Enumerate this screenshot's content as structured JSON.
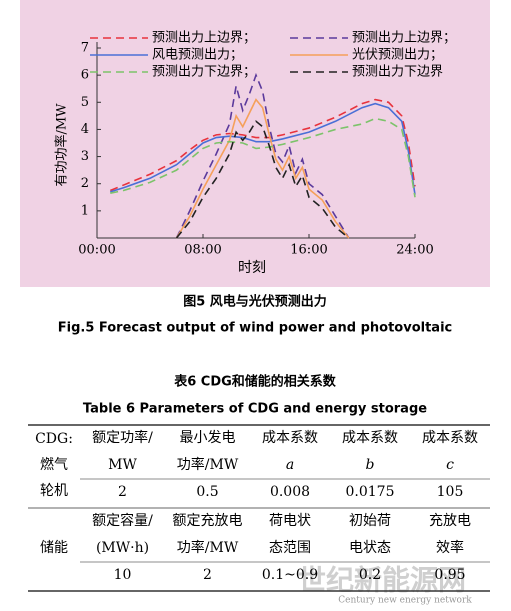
{
  "chart_data": {
    "type": "line",
    "ylabel": "有功功率/MW",
    "xlabel": "时刻",
    "xlim": [
      0,
      24
    ],
    "xticks": [
      {
        "value": 0,
        "label": "00:00"
      },
      {
        "value": 8,
        "label": "08:00"
      },
      {
        "value": 16,
        "label": "16:00"
      },
      {
        "value": 24,
        "label": "24:00"
      }
    ],
    "ylim": [
      0,
      7
    ],
    "yticks": [
      1,
      2,
      3,
      4,
      5,
      6,
      7
    ],
    "series": [
      {
        "name": "预测出力上边界；",
        "color": "#e8323c",
        "dash": true,
        "x": [
          1,
          2,
          4,
          6,
          7,
          8,
          9,
          10,
          11,
          12,
          13,
          14,
          16,
          18,
          20,
          21,
          22,
          23,
          23.5,
          24
        ],
        "values": [
          1.75,
          1.95,
          2.35,
          2.85,
          3.25,
          3.6,
          3.8,
          3.85,
          3.8,
          3.7,
          3.7,
          3.8,
          4.05,
          4.45,
          4.95,
          5.1,
          5.0,
          4.5,
          3.5,
          1.9
        ]
      },
      {
        "name": "预测出力上边界；",
        "color": "#5b3a9c",
        "dash": true,
        "x": [
          6,
          7,
          8,
          9,
          10,
          10.5,
          11,
          11.5,
          12,
          12.5,
          13,
          13.5,
          14,
          14.5,
          15,
          15.5,
          16,
          17,
          18,
          19
        ],
        "values": [
          0,
          1,
          2.1,
          3.1,
          4.2,
          5.6,
          4.7,
          5.3,
          6.0,
          5.4,
          4.1,
          3.1,
          2.8,
          3.4,
          2.4,
          2.9,
          2.0,
          1.6,
          0.8,
          0
        ]
      },
      {
        "name": "风电预测出力；",
        "color": "#4a6fd6",
        "dash": false,
        "x": [
          1,
          2,
          4,
          6,
          7,
          8,
          9,
          10,
          11,
          12,
          13,
          14,
          16,
          18,
          20,
          21,
          22,
          23,
          23.5,
          24
        ],
        "values": [
          1.7,
          1.85,
          2.2,
          2.7,
          3.1,
          3.5,
          3.7,
          3.75,
          3.7,
          3.55,
          3.55,
          3.65,
          3.9,
          4.3,
          4.8,
          4.95,
          4.8,
          4.3,
          3.2,
          1.6
        ]
      },
      {
        "name": "光伏预测出力；",
        "color": "#f5a05a",
        "dash": false,
        "x": [
          6,
          7,
          8,
          9,
          10,
          10.5,
          11,
          11.5,
          12,
          12.5,
          13,
          13.5,
          14,
          14.5,
          15,
          15.5,
          16,
          17,
          18,
          19
        ],
        "values": [
          0,
          0.8,
          1.8,
          2.7,
          3.6,
          4.5,
          4.1,
          4.6,
          5.1,
          4.8,
          3.8,
          2.9,
          2.5,
          3.0,
          2.2,
          2.6,
          1.8,
          1.4,
          0.6,
          0
        ]
      },
      {
        "name": "预测出力下边界；",
        "color": "#7cc36a",
        "dash": true,
        "x": [
          1,
          2,
          4,
          6,
          7,
          8,
          9,
          10,
          11,
          12,
          13,
          14,
          16,
          18,
          20,
          21,
          22,
          23,
          23.5,
          24
        ],
        "values": [
          1.65,
          1.75,
          2.05,
          2.5,
          2.9,
          3.3,
          3.5,
          3.55,
          3.5,
          3.3,
          3.35,
          3.45,
          3.7,
          4.0,
          4.2,
          4.4,
          4.3,
          4.0,
          3.0,
          1.5
        ]
      },
      {
        "name": "预测出力下边界",
        "color": "#222222",
        "dash": true,
        "x": [
          6,
          7,
          8,
          9,
          10,
          10.5,
          11,
          11.5,
          12,
          12.5,
          13,
          13.5,
          14,
          14.5,
          15,
          15.5,
          16,
          17,
          18,
          19
        ],
        "values": [
          0,
          0.6,
          1.5,
          2.2,
          3.1,
          3.9,
          3.6,
          3.9,
          4.3,
          4.1,
          3.4,
          2.6,
          2.2,
          2.7,
          1.9,
          2.3,
          1.5,
          1.1,
          0.4,
          0
        ]
      }
    ]
  },
  "figure": {
    "caption_cn": "图5  风电与光伏预测出力",
    "caption_en": "Fig.5  Forecast output of wind power and photovoltaic"
  },
  "table": {
    "title_cn": "表6  CDG和储能的相关系数",
    "title_en": "Table 6  Parameters of CDG and energy storage",
    "groups": [
      {
        "label": [
          "CDG:",
          "燃气",
          "轮机"
        ],
        "headers": [
          [
            "额定功率/",
            "MW"
          ],
          [
            "最小发电",
            "功率/MW"
          ],
          [
            "成本系数",
            "a"
          ],
          [
            "成本系数",
            "b"
          ],
          [
            "成本系数",
            "c"
          ]
        ],
        "values": [
          2,
          0.5,
          0.008,
          0.0175,
          105
        ]
      },
      {
        "label": [
          "储能"
        ],
        "headers": [
          [
            "额定容量/",
            "(MW·h)"
          ],
          [
            "额定充放电",
            "功率/MW"
          ],
          [
            "荷电状",
            "态范围"
          ],
          [
            "初始荷",
            "电状态"
          ],
          [
            "充放电",
            "效率"
          ]
        ],
        "values": [
          10,
          2,
          "0.1~0.9",
          0.2,
          0.95
        ]
      }
    ]
  },
  "watermark": {
    "title": "世纪新能源网",
    "subtitle": "Century new energy network"
  }
}
